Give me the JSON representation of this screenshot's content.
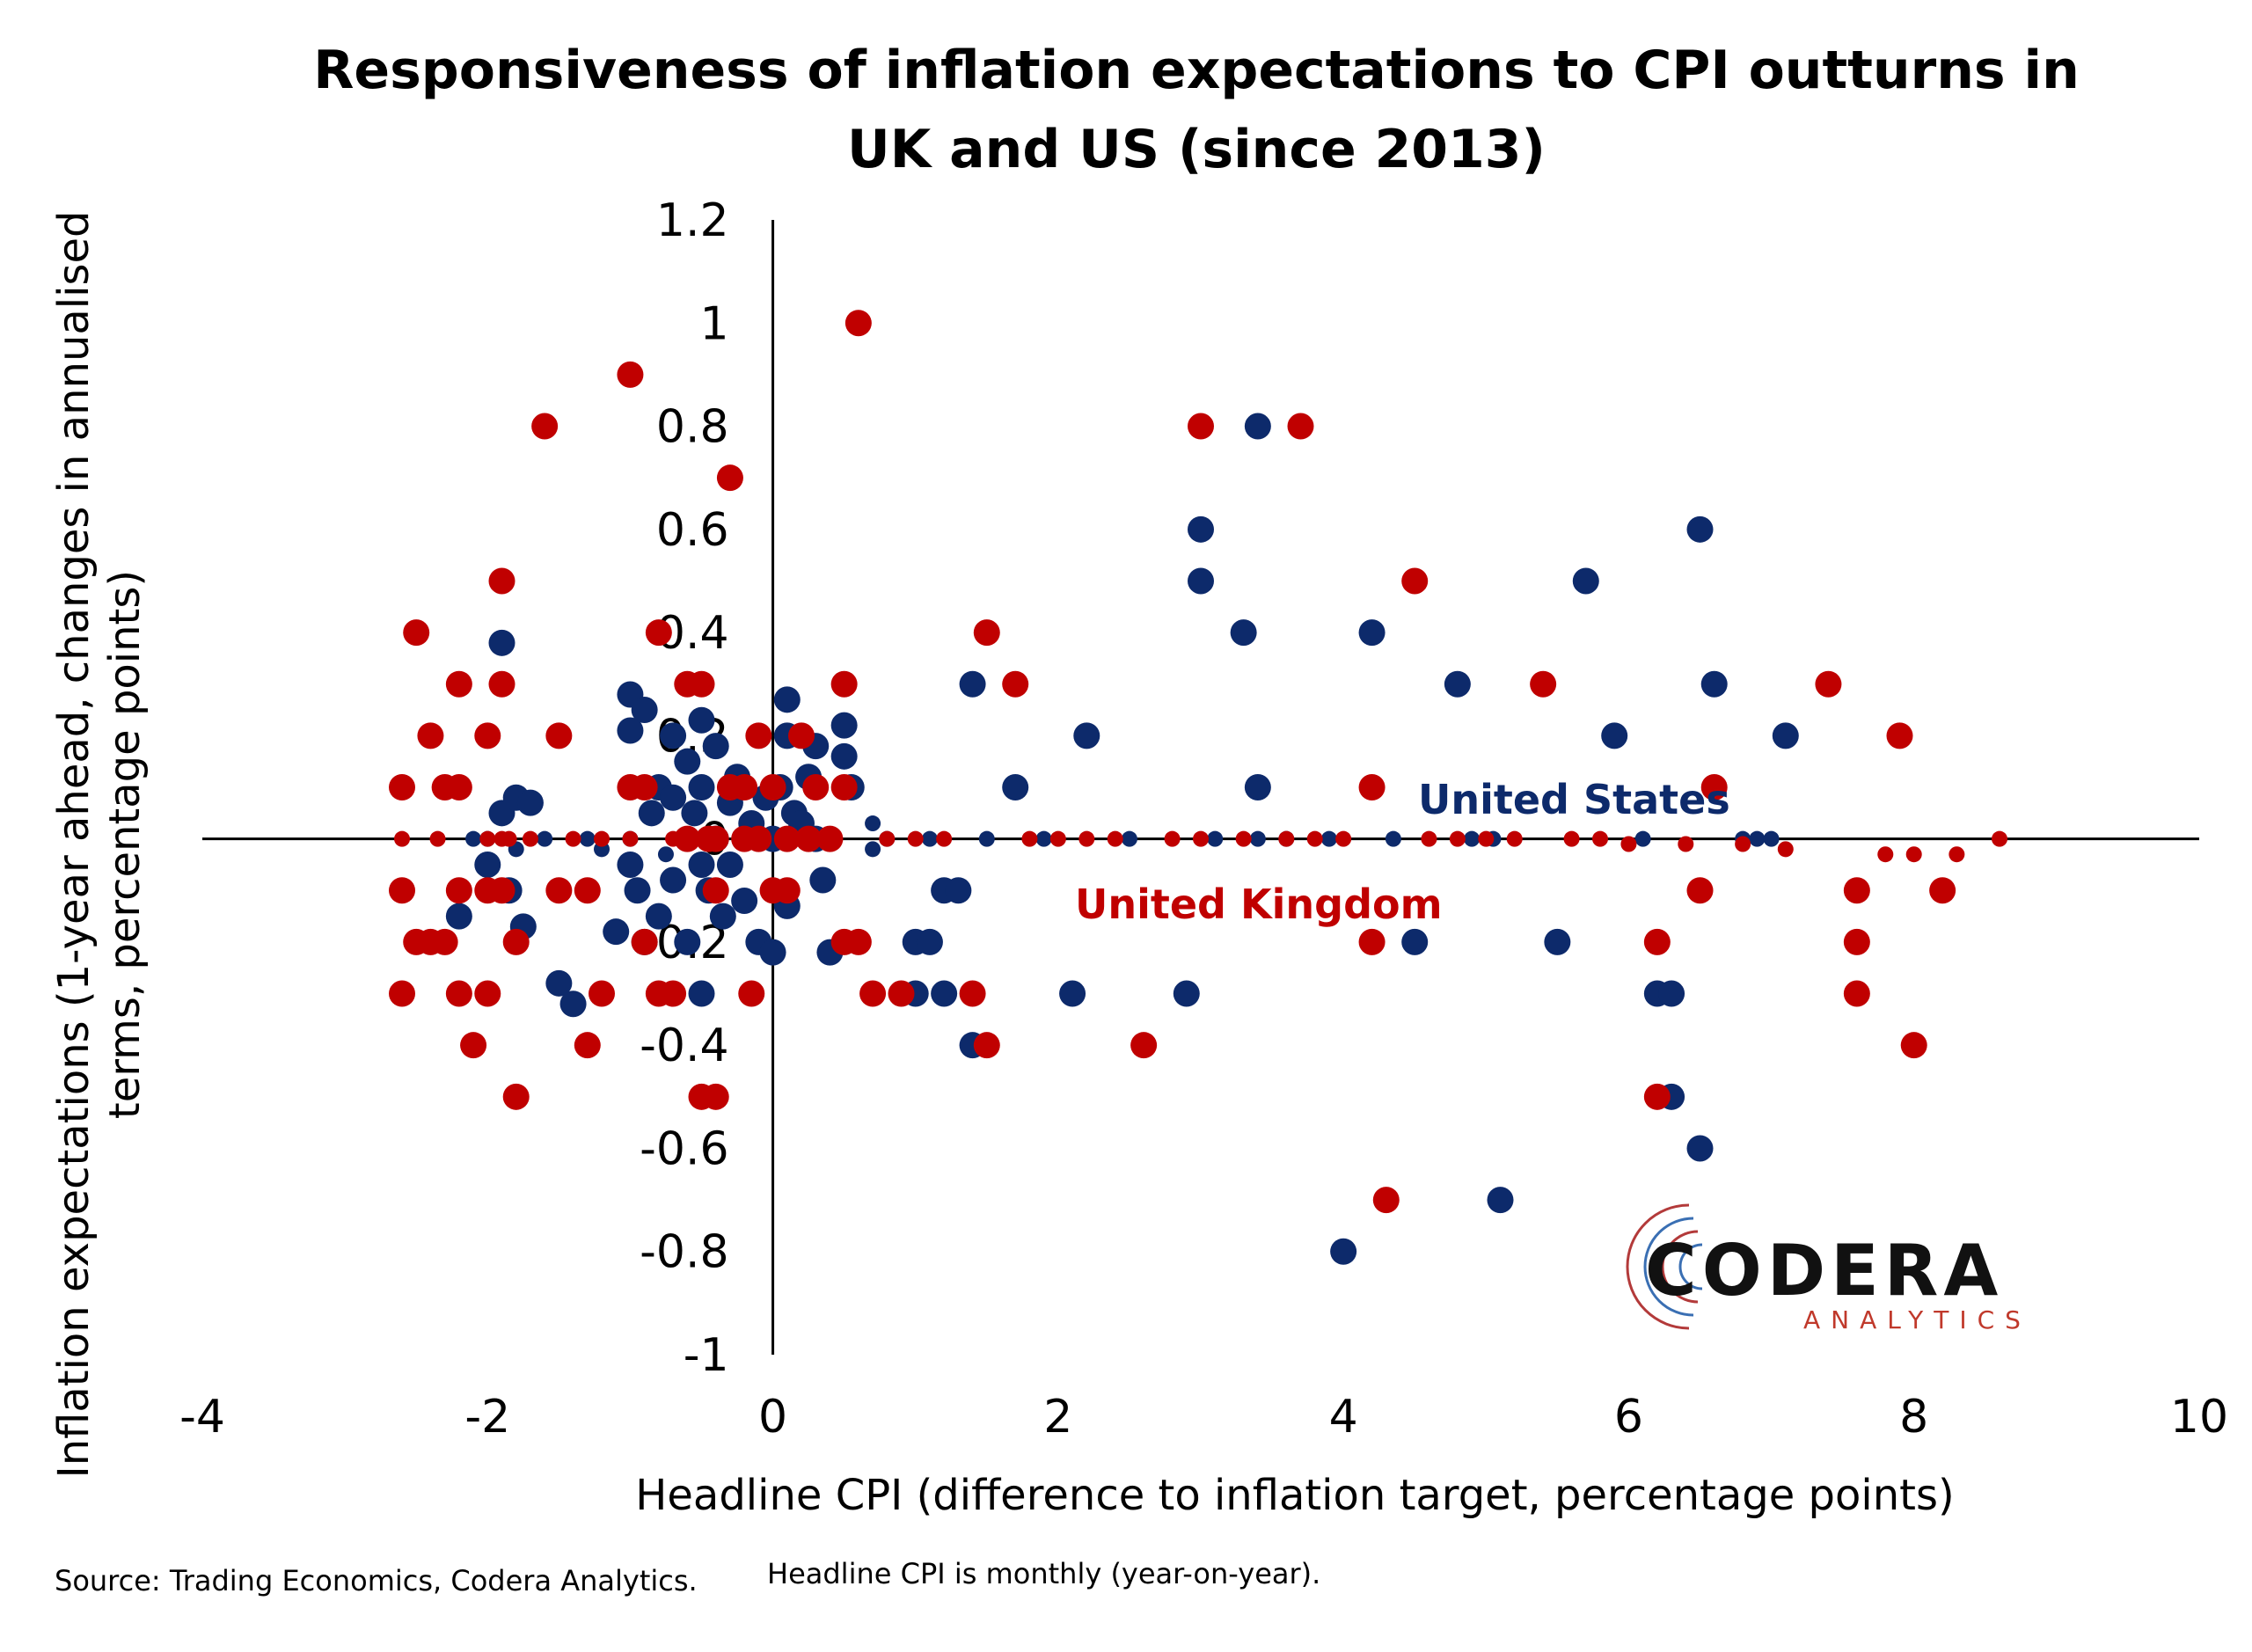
{
  "chart_data": {
    "type": "scatter",
    "title_lines": [
      "Responsiveness of inflation expectations to CPI outturns in",
      "UK and US (since 2013)"
    ],
    "xlabel": "Headline CPI (difference to inflation target, percentage points)",
    "ylabel_lines": [
      "Inflation expectations (1-year ahead, changes in annualised",
      "terms, percentage points)"
    ],
    "xlim": [
      -4,
      10
    ],
    "ylim": [
      -1,
      1.2
    ],
    "x_ticks": [
      "-4",
      "-2",
      "0",
      "2",
      "4",
      "6",
      "8",
      "10"
    ],
    "y_ticks": [
      "1.2",
      "1",
      "0.8",
      "0.6",
      "0.4",
      "0.2",
      "0",
      "-0.2",
      "-0.4",
      "-0.6",
      "-0.8",
      "-1"
    ],
    "grid": false,
    "series_labels": [
      {
        "text": "United States",
        "color": "#0d2a6b"
      },
      {
        "text": "United Kingdom",
        "color": "#c00000"
      }
    ],
    "series": [
      {
        "color": "#0d2a6b",
        "points": [
          [
            -2.2,
            -0.15
          ],
          [
            -2.1,
            0.0
          ],
          [
            -2.0,
            0.0
          ],
          [
            -2.0,
            -0.05
          ],
          [
            -1.9,
            0.38
          ],
          [
            -1.9,
            0.05
          ],
          [
            -1.85,
            -0.1
          ],
          [
            -1.8,
            0.08
          ],
          [
            -1.8,
            -0.02
          ],
          [
            -1.75,
            -0.17
          ],
          [
            -1.7,
            0.07
          ],
          [
            -1.6,
            0.0
          ],
          [
            -1.5,
            -0.28
          ],
          [
            -1.4,
            -0.32
          ],
          [
            -1.3,
            0.0
          ],
          [
            -1.2,
            -0.02
          ],
          [
            -1.1,
            -0.18
          ],
          [
            -1.0,
            0.28
          ],
          [
            -1.0,
            0.21
          ],
          [
            -1.0,
            0.0
          ],
          [
            -1.0,
            -0.05
          ],
          [
            -0.95,
            -0.1
          ],
          [
            -0.9,
            0.25
          ],
          [
            -0.9,
            -0.2
          ],
          [
            -0.85,
            0.05
          ],
          [
            -0.8,
            0.1
          ],
          [
            -0.8,
            -0.15
          ],
          [
            -0.75,
            -0.03
          ],
          [
            -0.7,
            0.2
          ],
          [
            -0.7,
            0.08
          ],
          [
            -0.7,
            -0.08
          ],
          [
            -0.65,
            0.0
          ],
          [
            -0.6,
            0.15
          ],
          [
            -0.6,
            -0.2
          ],
          [
            -0.55,
            0.05
          ],
          [
            -0.5,
            0.23
          ],
          [
            -0.5,
            0.1
          ],
          [
            -0.5,
            -0.05
          ],
          [
            -0.5,
            -0.3
          ],
          [
            -0.45,
            -0.1
          ],
          [
            -0.4,
            0.18
          ],
          [
            -0.4,
            0.0
          ],
          [
            -0.35,
            -0.15
          ],
          [
            -0.3,
            0.07
          ],
          [
            -0.3,
            -0.05
          ],
          [
            -0.25,
            0.12
          ],
          [
            -0.2,
            -0.12
          ],
          [
            -0.15,
            0.03
          ],
          [
            -0.1,
            -0.2
          ],
          [
            -0.05,
            0.08
          ],
          [
            0.0,
            0.0
          ],
          [
            0.0,
            -0.22
          ],
          [
            0.05,
            0.1
          ],
          [
            0.1,
            0.27
          ],
          [
            0.1,
            0.2
          ],
          [
            0.1,
            -0.13
          ],
          [
            0.15,
            0.05
          ],
          [
            0.2,
            0.03
          ],
          [
            0.25,
            0.12
          ],
          [
            0.3,
            0.18
          ],
          [
            0.3,
            0.0
          ],
          [
            0.35,
            -0.08
          ],
          [
            0.4,
            -0.22
          ],
          [
            0.5,
            0.22
          ],
          [
            0.5,
            0.16
          ],
          [
            0.55,
            0.1
          ],
          [
            0.7,
            0.03
          ],
          [
            0.7,
            -0.02
          ],
          [
            0.8,
            0.0
          ],
          [
            1.0,
            -0.2
          ],
          [
            1.0,
            -0.3
          ],
          [
            1.1,
            -0.2
          ],
          [
            1.1,
            0.0
          ],
          [
            1.2,
            -0.1
          ],
          [
            1.2,
            -0.3
          ],
          [
            1.3,
            -0.1
          ],
          [
            1.4,
            0.3
          ],
          [
            1.4,
            -0.4
          ],
          [
            1.5,
            0.0
          ],
          [
            1.7,
            0.1
          ],
          [
            1.9,
            0.0
          ],
          [
            2.1,
            -0.3
          ],
          [
            2.2,
            0.2
          ],
          [
            2.5,
            0.0
          ],
          [
            2.9,
            -0.3
          ],
          [
            3.0,
            0.6
          ],
          [
            3.0,
            0.5
          ],
          [
            3.1,
            0.0
          ],
          [
            3.3,
            0.4
          ],
          [
            3.4,
            0.8
          ],
          [
            3.4,
            0.1
          ],
          [
            3.4,
            0.0
          ],
          [
            3.6,
            0.0
          ],
          [
            3.9,
            0.0
          ],
          [
            4.2,
            0.4
          ],
          [
            4.35,
            0.0
          ],
          [
            4.5,
            -0.2
          ],
          [
            4.8,
            0.3
          ],
          [
            4.9,
            0.0
          ],
          [
            5.05,
            0.0
          ],
          [
            5.1,
            -0.7
          ],
          [
            5.5,
            -0.2
          ],
          [
            5.7,
            0.5
          ],
          [
            5.9,
            0.2
          ],
          [
            6.1,
            0.0
          ],
          [
            6.2,
            -0.3
          ],
          [
            6.3,
            -0.3
          ],
          [
            6.3,
            -0.5
          ],
          [
            6.5,
            0.6
          ],
          [
            6.5,
            -0.6
          ],
          [
            6.6,
            0.3
          ],
          [
            6.8,
            0.0
          ],
          [
            6.9,
            0.0
          ],
          [
            7.0,
            0.0
          ],
          [
            7.1,
            0.2
          ],
          [
            4.0,
            -0.8
          ]
        ]
      },
      {
        "color": "#c00000",
        "points": [
          [
            -2.6,
            0.1
          ],
          [
            -2.6,
            0.0
          ],
          [
            -2.6,
            -0.1
          ],
          [
            -2.6,
            -0.3
          ],
          [
            -2.5,
            0.4
          ],
          [
            -2.5,
            -0.2
          ],
          [
            -2.4,
            0.2
          ],
          [
            -2.4,
            -0.2
          ],
          [
            -2.35,
            0.0
          ],
          [
            -2.3,
            0.1
          ],
          [
            -2.3,
            -0.2
          ],
          [
            -2.2,
            0.1
          ],
          [
            -2.2,
            0.3
          ],
          [
            -2.2,
            -0.1
          ],
          [
            -2.2,
            -0.3
          ],
          [
            -2.1,
            -0.4
          ],
          [
            -2.0,
            0.2
          ],
          [
            -2.0,
            0.0
          ],
          [
            -2.0,
            -0.1
          ],
          [
            -2.0,
            -0.3
          ],
          [
            -1.9,
            0.5
          ],
          [
            -1.9,
            0.3
          ],
          [
            -1.9,
            0.0
          ],
          [
            -1.9,
            -0.1
          ],
          [
            -1.85,
            0.0
          ],
          [
            -1.8,
            -0.2
          ],
          [
            -1.8,
            -0.5
          ],
          [
            -1.7,
            0.0
          ],
          [
            -1.6,
            0.8
          ],
          [
            -1.5,
            0.2
          ],
          [
            -1.5,
            -0.1
          ],
          [
            -1.4,
            0.0
          ],
          [
            -1.3,
            -0.1
          ],
          [
            -1.3,
            -0.4
          ],
          [
            -1.2,
            0.0
          ],
          [
            -1.2,
            -0.3
          ],
          [
            -1.0,
            0.9
          ],
          [
            -1.0,
            0.1
          ],
          [
            -1.0,
            0.0
          ],
          [
            -0.9,
            0.1
          ],
          [
            -0.9,
            -0.2
          ],
          [
            -0.8,
            0.4
          ],
          [
            -0.8,
            -0.3
          ],
          [
            -0.7,
            0.0
          ],
          [
            -0.7,
            -0.3
          ],
          [
            -0.6,
            0.3
          ],
          [
            -0.6,
            0.0
          ],
          [
            -0.5,
            0.3
          ],
          [
            -0.5,
            -0.5
          ],
          [
            -0.45,
            0.0
          ],
          [
            -0.4,
            0.0
          ],
          [
            -0.4,
            -0.5
          ],
          [
            -0.4,
            -0.1
          ],
          [
            -0.3,
            0.7
          ],
          [
            -0.3,
            0.1
          ],
          [
            -0.2,
            0.1
          ],
          [
            -0.2,
            0.0
          ],
          [
            -0.15,
            -0.3
          ],
          [
            -0.1,
            0.2
          ],
          [
            -0.1,
            0.0
          ],
          [
            0.0,
            0.1
          ],
          [
            0.0,
            -0.1
          ],
          [
            0.1,
            0.0
          ],
          [
            0.1,
            -0.1
          ],
          [
            0.2,
            0.2
          ],
          [
            0.25,
            0.0
          ],
          [
            0.3,
            0.1
          ],
          [
            0.4,
            0.0
          ],
          [
            0.5,
            0.3
          ],
          [
            0.5,
            0.1
          ],
          [
            0.5,
            -0.2
          ],
          [
            0.6,
            1.0
          ],
          [
            0.6,
            -0.2
          ],
          [
            0.7,
            -0.3
          ],
          [
            0.8,
            0.0
          ],
          [
            0.9,
            -0.3
          ],
          [
            1.0,
            0.0
          ],
          [
            1.2,
            0.0
          ],
          [
            1.4,
            -0.3
          ],
          [
            1.5,
            0.4
          ],
          [
            1.5,
            -0.4
          ],
          [
            1.7,
            0.3
          ],
          [
            1.8,
            0.0
          ],
          [
            2.0,
            0.0
          ],
          [
            2.2,
            0.0
          ],
          [
            2.4,
            0.0
          ],
          [
            2.6,
            -0.4
          ],
          [
            2.8,
            0.0
          ],
          [
            3.0,
            0.8
          ],
          [
            3.0,
            0.0
          ],
          [
            3.3,
            0.0
          ],
          [
            3.6,
            0.0
          ],
          [
            3.7,
            0.8
          ],
          [
            3.8,
            0.0
          ],
          [
            4.0,
            0.0
          ],
          [
            4.2,
            0.1
          ],
          [
            4.2,
            -0.2
          ],
          [
            4.3,
            -0.7
          ],
          [
            4.5,
            0.5
          ],
          [
            4.6,
            0.0
          ],
          [
            4.8,
            0.0
          ],
          [
            5.0,
            0.0
          ],
          [
            5.2,
            0.0
          ],
          [
            5.4,
            0.3
          ],
          [
            5.6,
            0.0
          ],
          [
            5.8,
            0.0
          ],
          [
            6.0,
            -0.01
          ],
          [
            6.2,
            -0.2
          ],
          [
            6.2,
            -0.5
          ],
          [
            6.4,
            -0.01
          ],
          [
            6.5,
            -0.1
          ],
          [
            6.6,
            0.1
          ],
          [
            6.8,
            -0.01
          ],
          [
            7.1,
            -0.02
          ],
          [
            7.4,
            0.3
          ],
          [
            7.6,
            -0.1
          ],
          [
            7.6,
            -0.2
          ],
          [
            7.6,
            -0.3
          ],
          [
            7.8,
            -0.03
          ],
          [
            7.9,
            0.2
          ],
          [
            8.0,
            -0.4
          ],
          [
            8.2,
            -0.1
          ],
          [
            8.0,
            -0.03
          ],
          [
            8.3,
            -0.03
          ],
          [
            8.6,
            0.0
          ]
        ]
      }
    ]
  },
  "source_note": {
    "part1": "Source: Trading Economics, Codera Analytics.",
    "part2": "Headline CPI is monthly (year-on-year)."
  },
  "logo": {
    "name": "CODERA",
    "sub": "ANALYTICS",
    "sub_color": "#c0392b"
  }
}
